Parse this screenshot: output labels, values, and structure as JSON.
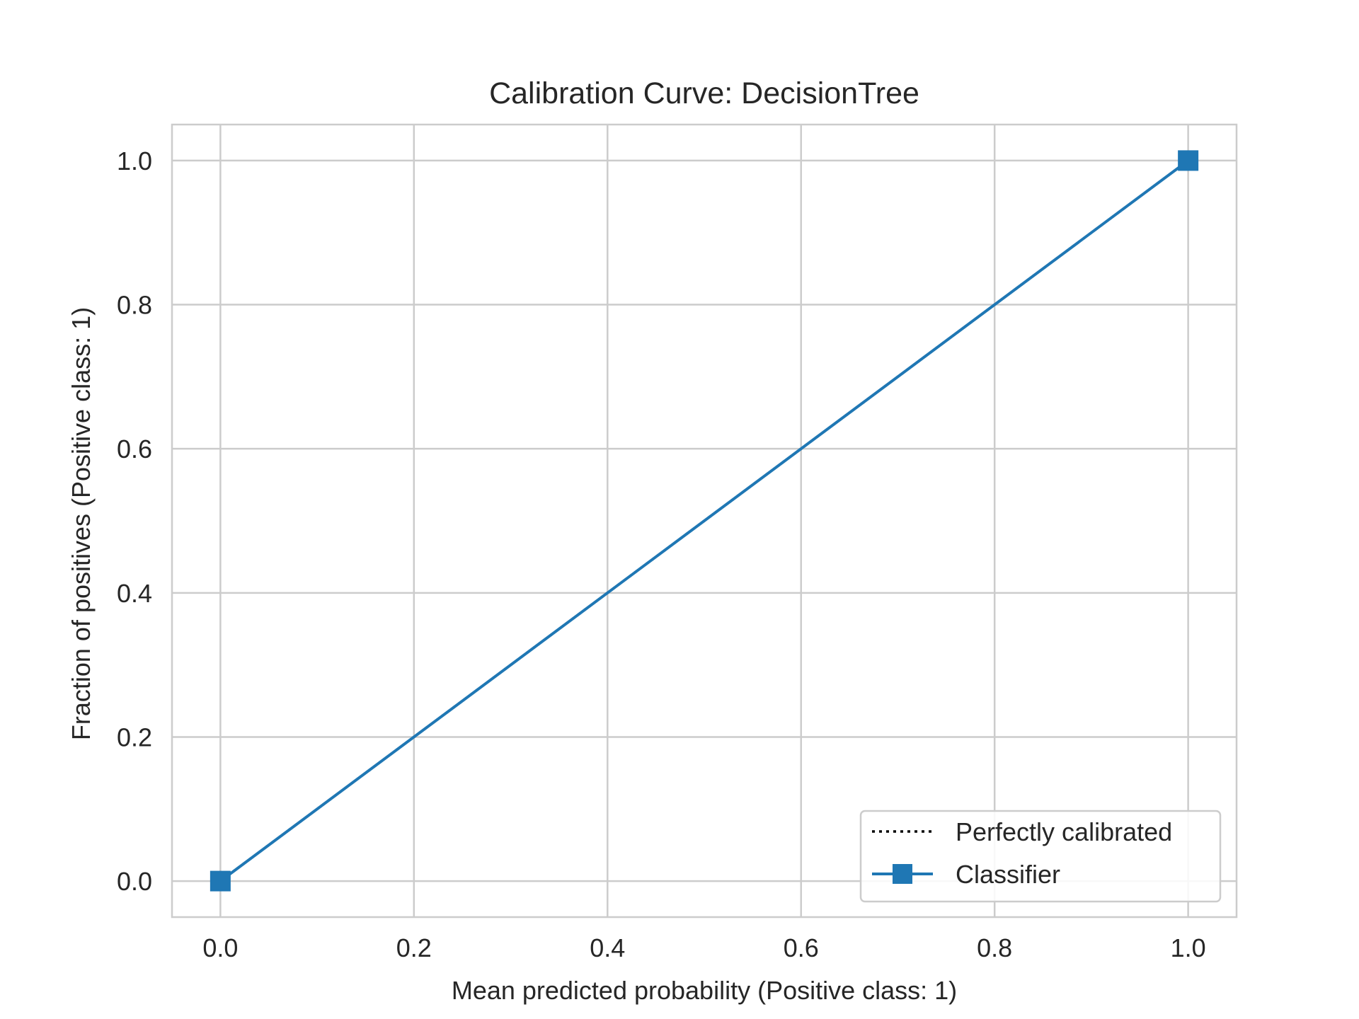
{
  "chart_data": {
    "type": "line",
    "title": "Calibration Curve: DecisionTree",
    "xlabel": "Mean predicted probability (Positive class: 1)",
    "ylabel": "Fraction of positives (Positive class: 1)",
    "xlim": [
      -0.05,
      1.05
    ],
    "ylim": [
      -0.05,
      1.05
    ],
    "xticks": [
      0.0,
      0.2,
      0.4,
      0.6,
      0.8,
      1.0
    ],
    "yticks": [
      0.0,
      0.2,
      0.4,
      0.6,
      0.8,
      1.0
    ],
    "xtick_labels": [
      "0.0",
      "0.2",
      "0.4",
      "0.6",
      "0.8",
      "1.0"
    ],
    "ytick_labels": [
      "0.0",
      "0.2",
      "0.4",
      "0.6",
      "0.8",
      "1.0"
    ],
    "grid": true,
    "legend_position": "bottom-right",
    "series": [
      {
        "name": "Perfectly calibrated",
        "x": [
          0,
          1
        ],
        "y": [
          0,
          1
        ],
        "color": "#000000",
        "style": "dotted",
        "marker": "none"
      },
      {
        "name": "Classifier",
        "x": [
          0.0,
          1.0
        ],
        "y": [
          0.0,
          1.0
        ],
        "color": "#1f77b4",
        "style": "solid",
        "marker": "square"
      }
    ]
  },
  "colors": {
    "grid": "#cccccc",
    "text": "#262626",
    "background": "#ffffff"
  }
}
